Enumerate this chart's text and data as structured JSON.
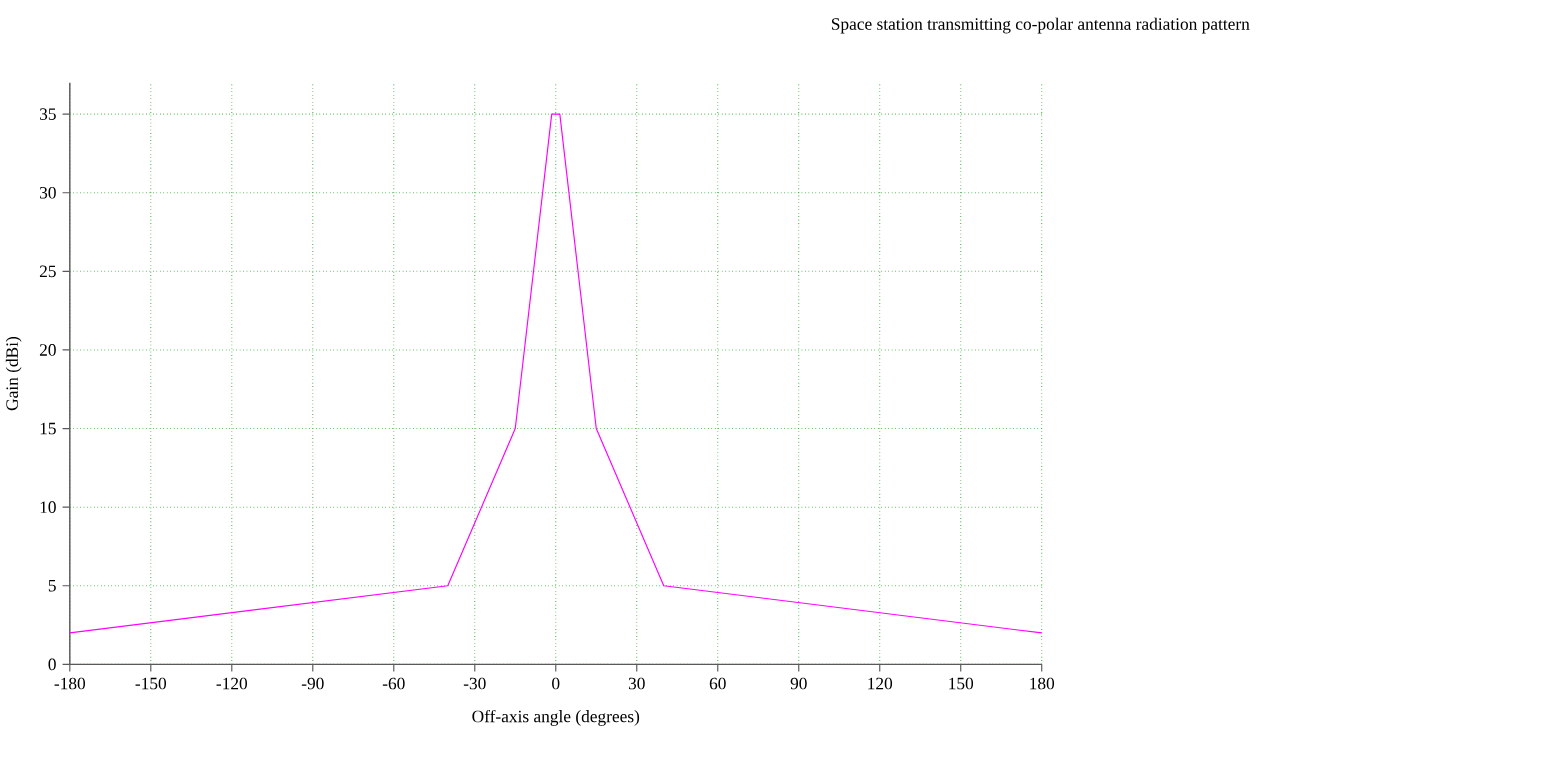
{
  "chart_data": {
    "type": "line",
    "title": "Space station transmitting co-polar antenna radiation pattern",
    "xlabel": "Off-axis angle (degrees)",
    "ylabel": "Gain (dBi)",
    "series": [
      {
        "color": "#ff00ff",
        "x": [
          -180,
          -40,
          -15,
          -1.5,
          1.5,
          15,
          40,
          180
        ],
        "values": [
          2,
          5,
          15,
          35,
          35,
          15,
          5,
          2
        ]
      }
    ],
    "xlim": [
      -180,
      180
    ],
    "ylim": [
      0,
      37
    ],
    "xticks": [
      -180,
      -150,
      -120,
      -90,
      -60,
      -30,
      0,
      30,
      60,
      90,
      120,
      150,
      180
    ],
    "yticks": [
      0,
      5,
      10,
      15,
      20,
      25,
      30,
      35
    ],
    "grid": true,
    "marker": "none",
    "line_style": "solid"
  }
}
